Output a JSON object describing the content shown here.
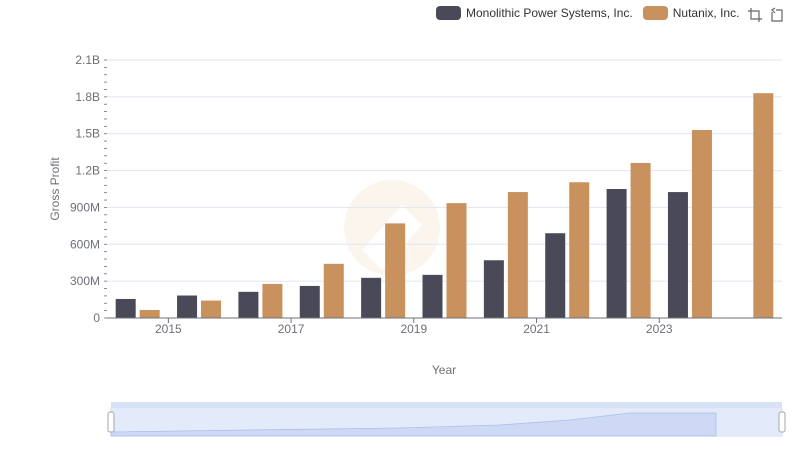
{
  "legend": {
    "items": [
      {
        "name": "Monolithic Power Systems, Inc.",
        "color": "#4a4957"
      },
      {
        "name": "Nutanix, Inc.",
        "color": "#c8915e"
      }
    ]
  },
  "toolbox": {
    "icons": [
      "zoom-icon",
      "restore-icon"
    ]
  },
  "chart_data": {
    "type": "bar",
    "xlabel": "Year",
    "ylabel": "Gross Profit",
    "ylim": [
      0,
      2100000000
    ],
    "yticks": [
      "0",
      "300M",
      "600M",
      "900M",
      "1.2B",
      "1.5B",
      "1.8B",
      "2.1B"
    ],
    "ytick_values": [
      0,
      300000000,
      600000000,
      900000000,
      1200000000,
      1500000000,
      1800000000,
      2100000000
    ],
    "categories": [
      "2014",
      "2015",
      "2016",
      "2017",
      "2018",
      "2019",
      "2020",
      "2021",
      "2022",
      "2023",
      "2024"
    ],
    "xtick_labels": [
      "2015",
      "2017",
      "2019",
      "2021",
      "2023"
    ],
    "grid": true,
    "legend_position": "top-right",
    "series": [
      {
        "name": "Monolithic Power Systems, Inc.",
        "color": "#4a4957",
        "values": [
          155000000,
          183000000,
          213000000,
          261000000,
          327000000,
          351000000,
          470000000,
          690000000,
          1050000000,
          1025000000,
          null
        ]
      },
      {
        "name": "Nutanix, Inc.",
        "color": "#c8915e",
        "values": [
          65000000,
          142000000,
          277000000,
          441000000,
          770000000,
          935000000,
          1025000000,
          1105000000,
          1262000000,
          1530000000,
          1830000000
        ]
      }
    ]
  }
}
